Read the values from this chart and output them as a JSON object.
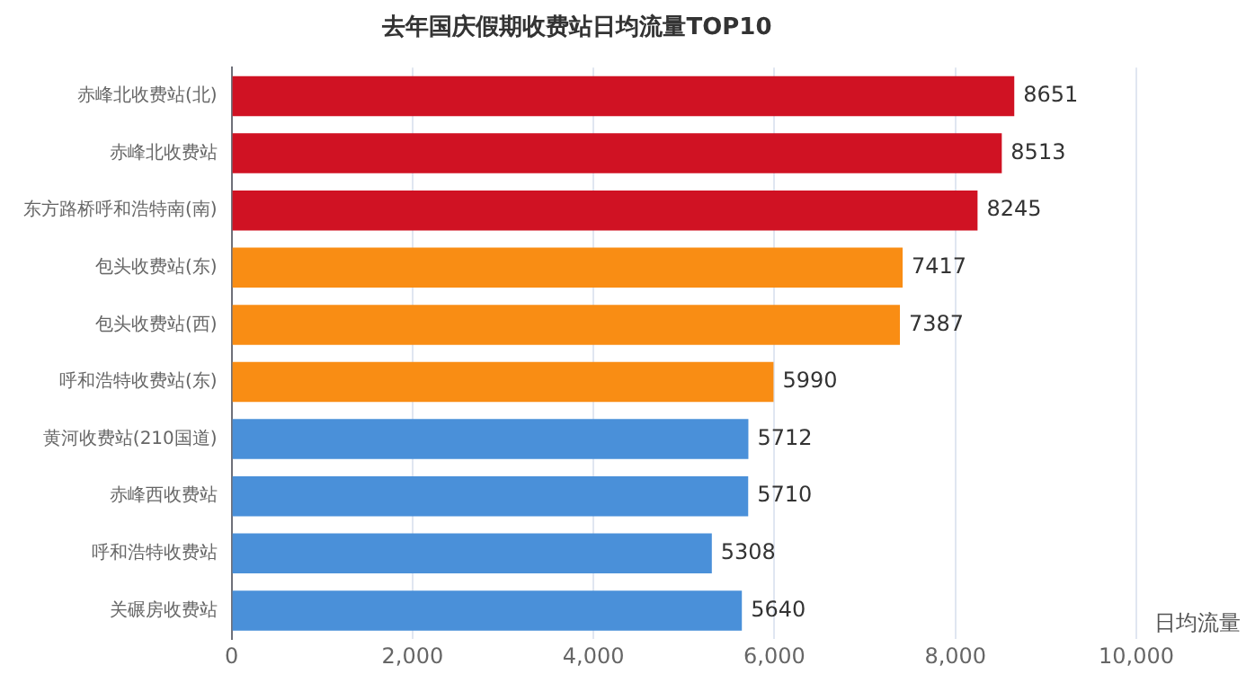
{
  "chart_data": {
    "type": "bar",
    "orientation": "horizontal",
    "title": "去年国庆假期收费站日均流量TOP10",
    "xlabel": "日均流量",
    "categories": [
      "赤峰北收费站(北)",
      "赤峰北收费站",
      "东方路桥呼和浩特南(南)",
      "包头收费站(东)",
      "包头收费站(西)",
      "呼和浩特收费站(东)",
      "黄河收费站(210国道)",
      "赤峰西收费站",
      "呼和浩特收费站",
      "关碾房收费站"
    ],
    "values": [
      8651,
      8513,
      8245,
      7417,
      7387,
      5990,
      5712,
      5710,
      5308,
      5640
    ],
    "colors": [
      "#d01223",
      "#d01223",
      "#d01223",
      "#f98d14",
      "#f98d14",
      "#f98d14",
      "#4a90d9",
      "#4a90d9",
      "#4a90d9",
      "#4a90d9"
    ],
    "xlim": [
      0,
      10000
    ],
    "xticks": [
      {
        "value": 0,
        "label": "0"
      },
      {
        "value": 2000,
        "label": "2,000"
      },
      {
        "value": 4000,
        "label": "4,000"
      },
      {
        "value": 6000,
        "label": "6,000"
      },
      {
        "value": 8000,
        "label": "8,000"
      },
      {
        "value": 10000,
        "label": "10,000"
      }
    ],
    "grid": "x",
    "data_labels": true,
    "legend": false
  }
}
